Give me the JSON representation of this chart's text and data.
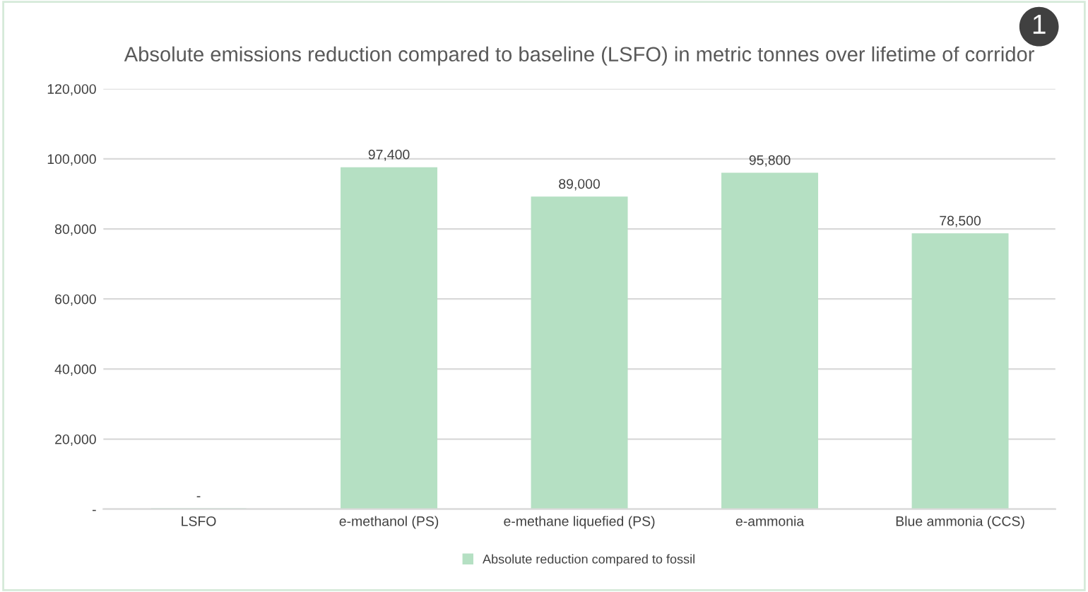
{
  "chart_data": {
    "type": "bar",
    "title": "Absolute emissions reduction compared to baseline (LSFO) in metric tonnes over lifetime of corridor",
    "categories": [
      "LSFO",
      "e-methanol (PS)",
      "e-methane liquefied (PS)",
      "e-ammonia",
      "Blue ammonia (CCS)"
    ],
    "series": [
      {
        "name": "Absolute reduction compared to fossil",
        "color": "#b5e0c3",
        "values": [
          0,
          97400,
          89000,
          95800,
          78500
        ]
      }
    ],
    "value_labels": [
      "-",
      "97,400",
      "89,000",
      "95,800",
      "78,500"
    ],
    "ylim": [
      0,
      120000
    ],
    "yticks": [
      {
        "value": 0,
        "label": "-"
      },
      {
        "value": 20000,
        "label": "20,000"
      },
      {
        "value": 40000,
        "label": "40,000"
      },
      {
        "value": 60000,
        "label": "60,000"
      },
      {
        "value": 80000,
        "label": "80,000"
      },
      {
        "value": 100000,
        "label": "100,000"
      },
      {
        "value": 120000,
        "label": "120,000"
      }
    ],
    "grid": "y",
    "legend": "bottom",
    "annotations": [
      "1"
    ]
  }
}
